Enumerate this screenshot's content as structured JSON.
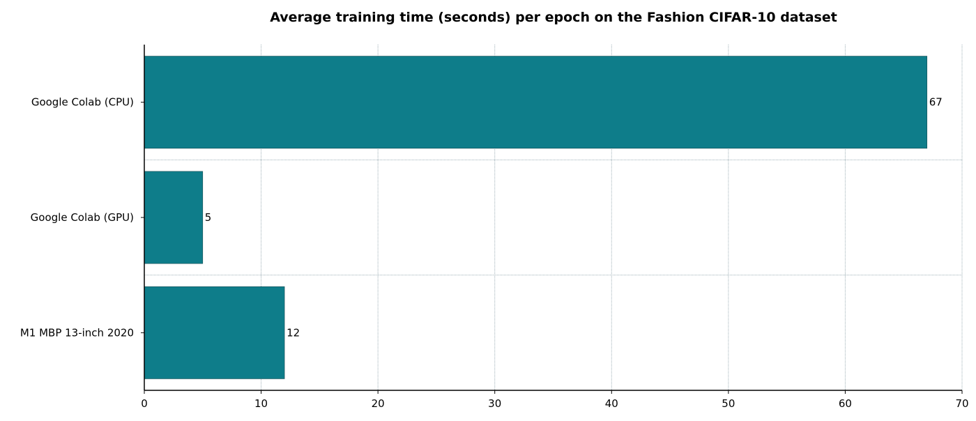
{
  "chart_data": {
    "type": "bar",
    "orientation": "horizontal",
    "title": "Average training time (seconds) per epoch on the Fashion CIFAR-10 dataset",
    "xlabel": "",
    "ylabel": "",
    "categories": [
      "Google Colab (CPU)",
      "Google Colab (GPU)",
      "M1 MBP 13-inch 2020"
    ],
    "values": [
      67,
      5,
      12
    ],
    "data_labels": [
      "67",
      "5",
      "12"
    ],
    "xlim": [
      0,
      70
    ],
    "x_ticks": [
      0,
      10,
      20,
      30,
      40,
      50,
      60,
      70
    ],
    "x_tick_labels": [
      "0",
      "10",
      "20",
      "30",
      "40",
      "50",
      "60",
      "70"
    ],
    "grid": true,
    "bar_color": "#0e7d8a"
  }
}
